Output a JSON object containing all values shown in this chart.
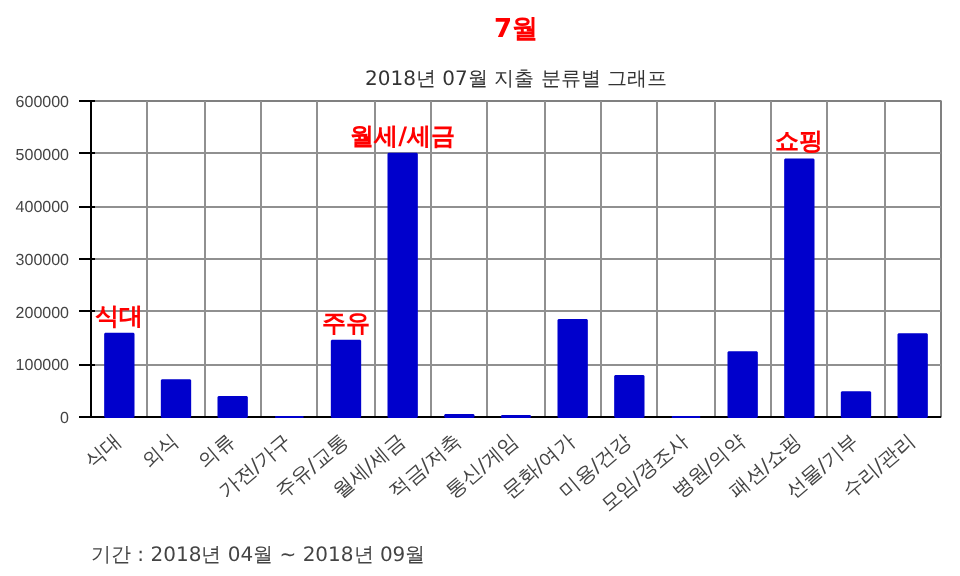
{
  "chart_data": {
    "type": "bar",
    "title": "7월",
    "subtitle": "2018년 07월 지출 분류별 그래프",
    "categories": [
      "식대",
      "외식",
      "의류",
      "가전/가구",
      "주유/교통",
      "월세/세금",
      "적금/저축",
      "통신/게임",
      "문화/여가",
      "미용/건강",
      "모임/경조사",
      "병원/의약",
      "패션/쇼핑",
      "선물/기부",
      "수리/관리"
    ],
    "values": [
      158000,
      70000,
      38000,
      0,
      145000,
      500000,
      4000,
      2000,
      184000,
      78000,
      0,
      123000,
      489000,
      47000,
      157000
    ],
    "color": "#0000cc",
    "ylim": [
      0,
      600000
    ],
    "yticks": [
      0,
      100000,
      200000,
      300000,
      400000,
      500000,
      600000
    ],
    "grid": true,
    "annotations": [
      {
        "text": "식대",
        "x": "식대",
        "y": 158000
      },
      {
        "text": "주유",
        "x": "주유/교통",
        "y": 145000
      },
      {
        "text": "월세/세금",
        "x": "월세/세금",
        "y": 500000
      },
      {
        "text": "쇼핑",
        "x": "패션/쇼핑",
        "y": 489000
      },
      "기간 : 2018년 04월 ~ 2018년 09월"
    ]
  }
}
